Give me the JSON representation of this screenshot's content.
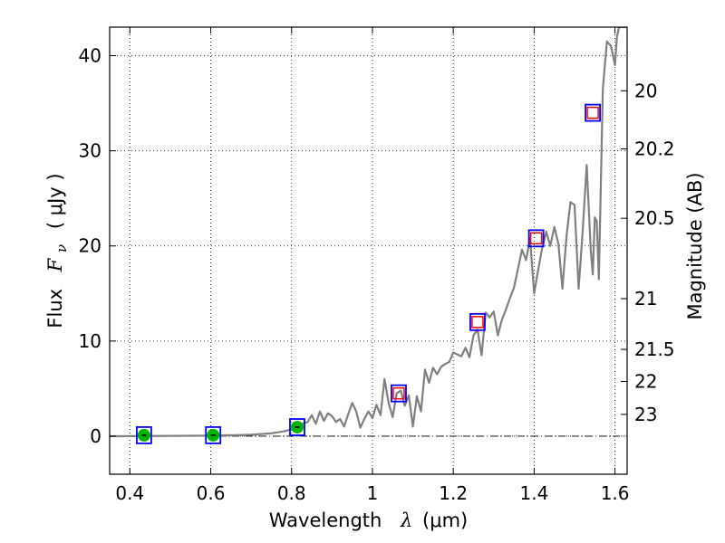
{
  "chart_data": {
    "type": "line",
    "xlabel_prefix": "Wavelength",
    "xlabel_symbol": "λ",
    "xlabel_unit": "(μm)",
    "ylabel_prefix": "Flux",
    "ylabel_symbol": "F",
    "ylabel_subscript": "ν",
    "ylabel_unit": "( μJy )",
    "ylabel_right": "Magnitude (AB)",
    "xlim": [
      0.35,
      1.63
    ],
    "ylim": [
      -4,
      43
    ],
    "grid": true,
    "x_ticks": [
      0.4,
      0.6,
      0.8,
      1.0,
      1.2,
      1.4,
      1.6
    ],
    "x_tick_labels": [
      "0.4",
      "0.6",
      "0.8",
      "1",
      "1.2",
      "1.4",
      "1.6"
    ],
    "y_ticks": [
      0,
      10,
      20,
      30,
      40
    ],
    "y_tick_labels": [
      "0",
      "10",
      "20",
      "30",
      "40"
    ],
    "right_ticks": [
      {
        "label": "20",
        "mag": 20.0
      },
      {
        "label": "20.2",
        "mag": 20.2
      },
      {
        "label": "20.5",
        "mag": 20.5
      },
      {
        "label": "21",
        "mag": 21.0
      },
      {
        "label": "21.5",
        "mag": 21.5
      },
      {
        "label": "22",
        "mag": 22.0
      },
      {
        "label": "23",
        "mag": 23.0
      }
    ],
    "zero_line": 0,
    "colors": {
      "spectrum": "#808080",
      "model_box": "#0000ff",
      "photometry_box": "#ff0000",
      "photometry_dot": "#00b300"
    },
    "spectrum": [
      [
        0.35,
        0.0
      ],
      [
        0.6,
        0.05
      ],
      [
        0.7,
        0.15
      ],
      [
        0.75,
        0.3
      ],
      [
        0.78,
        0.5
      ],
      [
        0.8,
        0.7
      ],
      [
        0.82,
        1.2
      ],
      [
        0.84,
        1.5
      ],
      [
        0.85,
        2.2
      ],
      [
        0.86,
        1.3
      ],
      [
        0.87,
        2.6
      ],
      [
        0.88,
        1.6
      ],
      [
        0.89,
        2.4
      ],
      [
        0.9,
        2.1
      ],
      [
        0.91,
        1.5
      ],
      [
        0.92,
        1.8
      ],
      [
        0.93,
        1.0
      ],
      [
        0.94,
        2.3
      ],
      [
        0.95,
        3.5
      ],
      [
        0.96,
        2.6
      ],
      [
        0.97,
        0.9
      ],
      [
        0.98,
        1.8
      ],
      [
        0.99,
        2.6
      ],
      [
        1.0,
        1.9
      ],
      [
        1.01,
        3.3
      ],
      [
        1.02,
        2.2
      ],
      [
        1.03,
        6.0
      ],
      [
        1.04,
        3.5
      ],
      [
        1.05,
        2.0
      ],
      [
        1.06,
        4.5
      ],
      [
        1.07,
        4.8
      ],
      [
        1.08,
        3.2
      ],
      [
        1.09,
        4.3
      ],
      [
        1.1,
        1.0
      ],
      [
        1.11,
        4.2
      ],
      [
        1.12,
        2.6
      ],
      [
        1.13,
        7.0
      ],
      [
        1.14,
        5.6
      ],
      [
        1.15,
        7.2
      ],
      [
        1.16,
        6.5
      ],
      [
        1.17,
        7.3
      ],
      [
        1.18,
        7.6
      ],
      [
        1.19,
        7.8
      ],
      [
        1.2,
        8.8
      ],
      [
        1.21,
        8.6
      ],
      [
        1.22,
        8.4
      ],
      [
        1.23,
        9.3
      ],
      [
        1.24,
        8.3
      ],
      [
        1.25,
        10.6
      ],
      [
        1.26,
        11.2
      ],
      [
        1.27,
        8.5
      ],
      [
        1.28,
        13.0
      ],
      [
        1.29,
        12.5
      ],
      [
        1.3,
        13.1
      ],
      [
        1.31,
        10.6
      ],
      [
        1.32,
        12.2
      ],
      [
        1.33,
        13.3
      ],
      [
        1.34,
        14.5
      ],
      [
        1.35,
        15.6
      ],
      [
        1.36,
        17.6
      ],
      [
        1.37,
        19.6
      ],
      [
        1.38,
        18.5
      ],
      [
        1.39,
        20.8
      ],
      [
        1.4,
        15.0
      ],
      [
        1.41,
        17.5
      ],
      [
        1.42,
        19.8
      ],
      [
        1.43,
        21.5
      ],
      [
        1.44,
        20.0
      ],
      [
        1.45,
        22.0
      ],
      [
        1.46,
        20.2
      ],
      [
        1.47,
        15.5
      ],
      [
        1.48,
        21.0
      ],
      [
        1.49,
        24.6
      ],
      [
        1.5,
        24.3
      ],
      [
        1.51,
        15.5
      ],
      [
        1.52,
        21.5
      ],
      [
        1.53,
        28.5
      ],
      [
        1.54,
        19.5
      ],
      [
        1.545,
        17.0
      ],
      [
        1.55,
        23.0
      ],
      [
        1.555,
        22.6
      ],
      [
        1.56,
        16.5
      ],
      [
        1.57,
        36.5
      ],
      [
        1.58,
        41.5
      ],
      [
        1.59,
        41.0
      ],
      [
        1.6,
        39.0
      ],
      [
        1.605,
        42.0
      ],
      [
        1.61,
        43.0
      ],
      [
        1.63,
        43.0
      ]
    ],
    "model_points": [
      {
        "x": 0.435,
        "y": 0.1
      },
      {
        "x": 0.606,
        "y": 0.1
      },
      {
        "x": 0.814,
        "y": 0.95
      },
      {
        "x": 1.065,
        "y": 4.5
      },
      {
        "x": 1.26,
        "y": 12.0
      },
      {
        "x": 1.405,
        "y": 20.8
      },
      {
        "x": 1.545,
        "y": 34.0
      }
    ],
    "photometry_points": [
      {
        "x": 0.435,
        "y": 0.1,
        "marker": "dot"
      },
      {
        "x": 0.606,
        "y": 0.1,
        "marker": "dot"
      },
      {
        "x": 0.814,
        "y": 0.95,
        "marker": "dot"
      },
      {
        "x": 1.065,
        "y": 4.5,
        "marker": "box"
      },
      {
        "x": 1.26,
        "y": 12.0,
        "marker": "box"
      },
      {
        "x": 1.405,
        "y": 20.8,
        "marker": "box"
      },
      {
        "x": 1.545,
        "y": 34.0,
        "marker": "box"
      }
    ]
  }
}
